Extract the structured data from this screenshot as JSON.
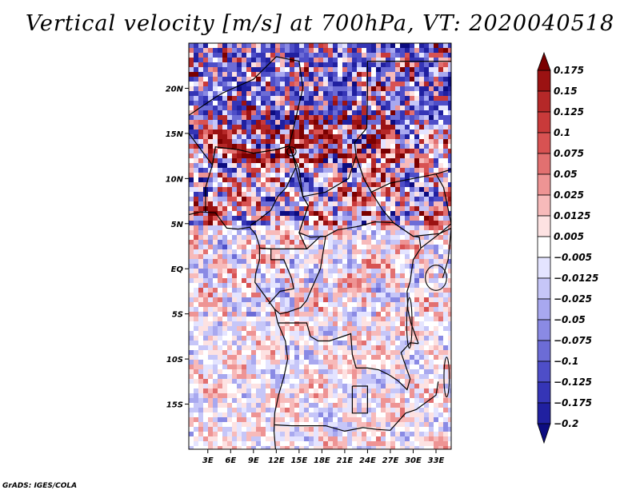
{
  "chart_data": {
    "type": "heatmap",
    "title": "Vertical velocity [m/s] at 700hPa, VT: 2020040518",
    "variable": "Vertical velocity",
    "units": "m/s",
    "level": "700hPa",
    "valid_time": "2020040518",
    "x_tick_labels": [
      "3E",
      "6E",
      "9E",
      "12E",
      "15E",
      "18E",
      "21E",
      "24E",
      "27E",
      "30E",
      "33E"
    ],
    "x_tick_values": [
      3,
      6,
      9,
      12,
      15,
      18,
      21,
      24,
      27,
      30,
      33
    ],
    "y_tick_labels": [
      "20N",
      "15N",
      "10N",
      "5N",
      "EQ",
      "5S",
      "10S",
      "15S"
    ],
    "y_tick_values": [
      20,
      15,
      10,
      5,
      0,
      -5,
      -10,
      -15
    ],
    "lon_range": [
      0.5,
      35
    ],
    "lat_range": [
      -20,
      25
    ],
    "colorbar": {
      "labels": [
        "0.175",
        "0.15",
        "0.125",
        "0.1",
        "0.075",
        "0.05",
        "0.025",
        "0.0125",
        "0.005",
        "−0.005",
        "−0.0125",
        "−0.025",
        "−0.05",
        "−0.075",
        "−0.1",
        "−0.125",
        "−0.175",
        "−0.2"
      ],
      "colors": [
        "#7a0000",
        "#9b1212",
        "#b52828",
        "#c93a3a",
        "#d85252",
        "#e27070",
        "#ee9494",
        "#f7baba",
        "#fde2e2",
        "#ffffff",
        "#e4e4ff",
        "#c6c6f8",
        "#a8a8ef",
        "#8a8ae4",
        "#6c6cd6",
        "#4e4ec8",
        "#3535b6",
        "#2020a0",
        "#0c0c80"
      ],
      "orientation": "vertical",
      "location": "right"
    }
  },
  "footer": {
    "credit": "GrADS: IGES/COLA"
  }
}
